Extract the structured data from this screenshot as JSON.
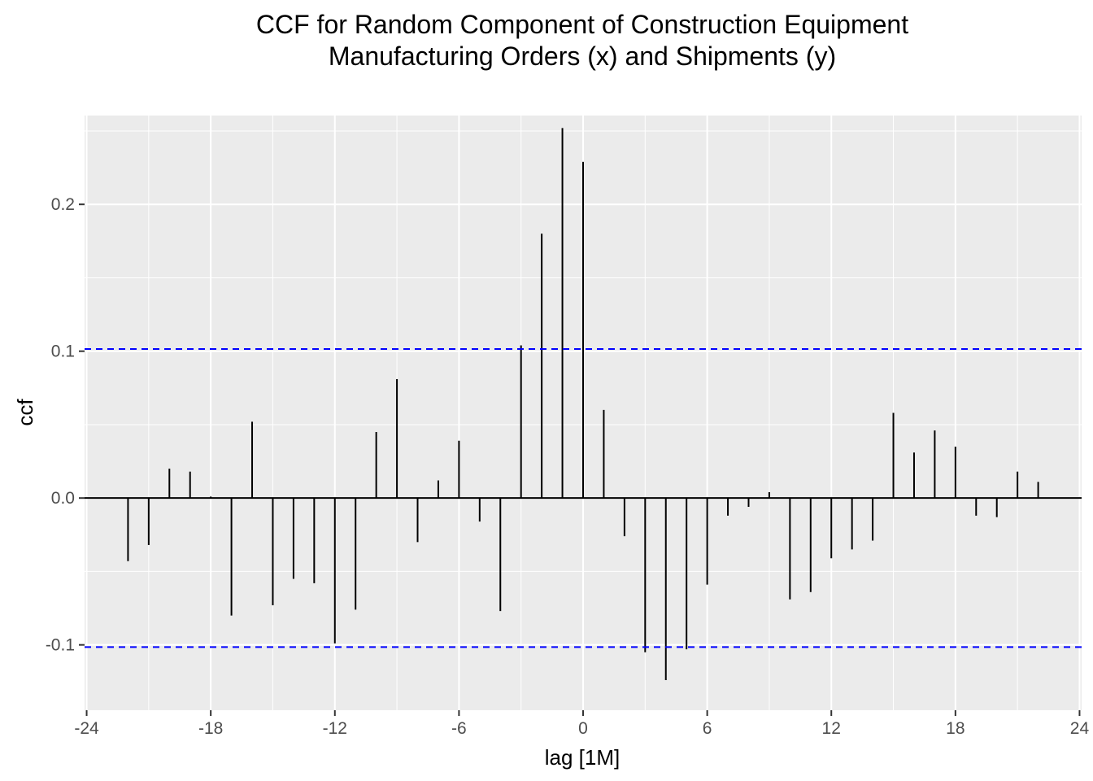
{
  "chart_data": {
    "type": "bar",
    "title_lines": [
      "CCF for Random Component of Construction Equipment",
      "Manufacturing Orders (x) and Shipments (y)"
    ],
    "xlabel": "lag [1M]",
    "ylabel": "ccf",
    "xlim": [
      -24.1,
      24.1
    ],
    "ylim": [
      -0.1445,
      0.2605
    ],
    "x_ticks": [
      -24,
      -18,
      -12,
      -6,
      0,
      6,
      12,
      18,
      24
    ],
    "x_tick_labels": [
      "-24",
      "-18",
      "-12",
      "-6",
      "0",
      "6",
      "12",
      "18",
      "24"
    ],
    "y_ticks": [
      -0.1,
      0.0,
      0.1,
      0.2
    ],
    "y_tick_labels": [
      "-0.1",
      "0.0",
      "0.1",
      "0.2"
    ],
    "confidence_bound": 0.1015,
    "grid": true,
    "panel_background": "#ebebeb",
    "grid_color": "#ffffff",
    "bar_color": "#000000",
    "bound_color": "#0000ff",
    "lags": [
      -22,
      -21,
      -20,
      -19,
      -18,
      -17,
      -16,
      -15,
      -14,
      -13,
      -12,
      -11,
      -10,
      -9,
      -8,
      -7,
      -6,
      -5,
      -4,
      -3,
      -2,
      -1,
      0,
      1,
      2,
      3,
      4,
      5,
      6,
      7,
      8,
      9,
      10,
      11,
      12,
      13,
      14,
      15,
      16,
      17,
      18,
      19,
      20,
      21,
      22
    ],
    "values": [
      -0.043,
      -0.032,
      0.02,
      0.018,
      0.001,
      -0.08,
      0.052,
      -0.073,
      -0.055,
      -0.058,
      -0.099,
      -0.076,
      0.045,
      0.081,
      -0.03,
      0.012,
      0.039,
      -0.016,
      -0.077,
      0.104,
      0.18,
      0.252,
      0.229,
      0.06,
      -0.026,
      -0.105,
      -0.124,
      -0.103,
      -0.059,
      -0.012,
      -0.006,
      0.004,
      -0.069,
      -0.064,
      -0.041,
      -0.035,
      -0.029,
      0.058,
      0.031,
      0.046,
      0.035,
      -0.012,
      -0.013,
      0.018,
      0.011
    ]
  }
}
